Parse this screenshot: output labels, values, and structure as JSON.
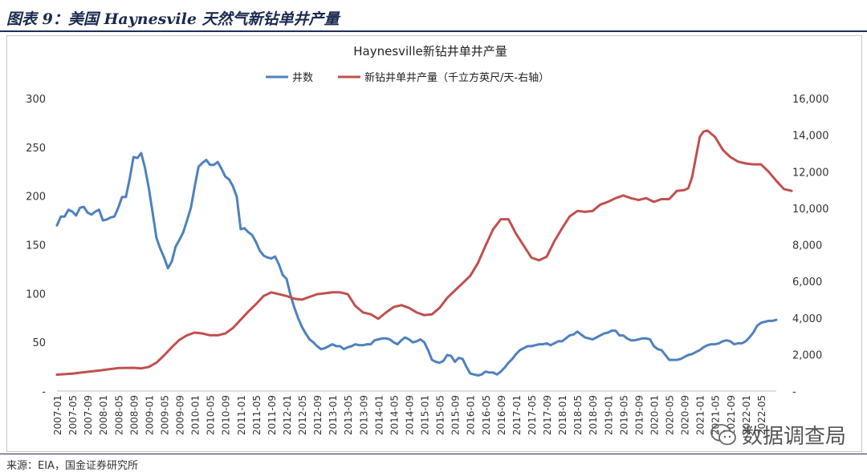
{
  "figure": {
    "title": "图表 9：美国 Haynesvile 天然气新钻单井产量",
    "source": "来源：EIA，国金证券研究所",
    "watermark": "数据调查局"
  },
  "chart_data": {
    "type": "line",
    "title": "Haynesville新钻井单井产量",
    "legend_position": "top",
    "grid": false,
    "x_ticks": [
      "2007-01",
      "2007-05",
      "2007-09",
      "2008-01",
      "2008-05",
      "2008-09",
      "2009-01",
      "2009-05",
      "2009-09",
      "2010-01",
      "2010-05",
      "2010-09",
      "2011-01",
      "2011-05",
      "2011-09",
      "2012-01",
      "2012-05",
      "2012-09",
      "2013-01",
      "2013-05",
      "2013-09",
      "2014-01",
      "2014-05",
      "2014-09",
      "2015-01",
      "2015-05",
      "2015-09",
      "2016-01",
      "2016-05",
      "2016-09",
      "2017-01",
      "2017-05",
      "2017-09",
      "2018-01",
      "2018-05",
      "2018-09",
      "2019-01",
      "2019-05",
      "2019-09",
      "2020-01",
      "2020-05",
      "2020-09",
      "2021-01",
      "2021-05",
      "2021-09",
      "2022-01",
      "2022-05"
    ],
    "y_left": {
      "min": 0,
      "max": 300,
      "ticks": [
        "-",
        "50",
        "100",
        "150",
        "200",
        "250",
        "300"
      ]
    },
    "y_right": {
      "min": 0,
      "max": 16000,
      "ticks": [
        "-",
        "2,000",
        "4,000",
        "6,000",
        "8,000",
        "10,000",
        "12,000",
        "14,000",
        "16,000"
      ]
    },
    "series": [
      {
        "name": "井数",
        "axis": "left",
        "color": "#4f81bd",
        "points": [
          [
            "2007-01",
            170
          ],
          [
            "2007-02",
            179
          ],
          [
            "2007-03",
            179
          ],
          [
            "2007-04",
            186
          ],
          [
            "2007-05",
            184
          ],
          [
            "2007-06",
            180
          ],
          [
            "2007-07",
            188
          ],
          [
            "2007-08",
            189
          ],
          [
            "2007-09",
            183
          ],
          [
            "2007-10",
            181
          ],
          [
            "2007-11",
            184
          ],
          [
            "2007-12",
            186
          ],
          [
            "2008-01",
            175
          ],
          [
            "2008-02",
            176
          ],
          [
            "2008-03",
            178
          ],
          [
            "2008-04",
            179
          ],
          [
            "2008-05",
            188
          ],
          [
            "2008-06",
            199
          ],
          [
            "2008-07",
            199
          ],
          [
            "2008-08",
            218
          ],
          [
            "2008-09",
            240
          ],
          [
            "2008-10",
            239
          ],
          [
            "2008-11",
            244
          ],
          [
            "2008-12",
            229
          ],
          [
            "2009-01",
            208
          ],
          [
            "2009-02",
            183
          ],
          [
            "2009-03",
            157
          ],
          [
            "2009-04",
            146
          ],
          [
            "2009-05",
            137
          ],
          [
            "2009-06",
            126
          ],
          [
            "2009-07",
            133
          ],
          [
            "2009-08",
            148
          ],
          [
            "2009-09",
            155
          ],
          [
            "2009-10",
            163
          ],
          [
            "2009-11",
            175
          ],
          [
            "2009-12",
            188
          ],
          [
            "2010-01",
            210
          ],
          [
            "2010-02",
            230
          ],
          [
            "2010-03",
            234
          ],
          [
            "2010-04",
            237
          ],
          [
            "2010-05",
            232
          ],
          [
            "2010-06",
            232
          ],
          [
            "2010-07",
            235
          ],
          [
            "2010-08",
            228
          ],
          [
            "2010-09",
            220
          ],
          [
            "2010-10",
            217
          ],
          [
            "2010-11",
            210
          ],
          [
            "2010-12",
            199
          ],
          [
            "2011-01",
            166
          ],
          [
            "2011-02",
            167
          ],
          [
            "2011-03",
            163
          ],
          [
            "2011-04",
            160
          ],
          [
            "2011-05",
            153
          ],
          [
            "2011-06",
            144
          ],
          [
            "2011-07",
            139
          ],
          [
            "2011-08",
            137
          ],
          [
            "2011-09",
            136
          ],
          [
            "2011-10",
            138
          ],
          [
            "2011-11",
            130
          ],
          [
            "2011-12",
            119
          ],
          [
            "2012-01",
            115
          ],
          [
            "2012-02",
            99
          ],
          [
            "2012-03",
            86
          ],
          [
            "2012-04",
            75
          ],
          [
            "2012-05",
            66
          ],
          [
            "2012-06",
            59
          ],
          [
            "2012-07",
            53
          ],
          [
            "2012-08",
            50
          ],
          [
            "2012-09",
            46
          ],
          [
            "2012-10",
            43
          ],
          [
            "2012-11",
            44
          ],
          [
            "2012-12",
            46
          ],
          [
            "2013-01",
            48
          ],
          [
            "2013-02",
            46
          ],
          [
            "2013-03",
            46
          ],
          [
            "2013-04",
            43
          ],
          [
            "2013-05",
            45
          ],
          [
            "2013-06",
            46
          ],
          [
            "2013-07",
            48
          ],
          [
            "2013-08",
            47
          ],
          [
            "2013-09",
            47
          ],
          [
            "2013-10",
            48
          ],
          [
            "2013-11",
            48
          ],
          [
            "2013-12",
            52
          ],
          [
            "2014-01",
            53
          ],
          [
            "2014-02",
            54
          ],
          [
            "2014-03",
            54
          ],
          [
            "2014-04",
            53
          ],
          [
            "2014-05",
            50
          ],
          [
            "2014-06",
            48
          ],
          [
            "2014-07",
            52
          ],
          [
            "2014-08",
            55
          ],
          [
            "2014-09",
            53
          ],
          [
            "2014-10",
            50
          ],
          [
            "2014-11",
            51
          ],
          [
            "2014-12",
            53
          ],
          [
            "2015-01",
            50
          ],
          [
            "2015-02",
            42
          ],
          [
            "2015-03",
            32
          ],
          [
            "2015-04",
            30
          ],
          [
            "2015-05",
            29
          ],
          [
            "2015-06",
            31
          ],
          [
            "2015-07",
            37
          ],
          [
            "2015-08",
            36
          ],
          [
            "2015-09",
            30
          ],
          [
            "2015-10",
            34
          ],
          [
            "2015-11",
            33
          ],
          [
            "2015-12",
            25
          ],
          [
            "2016-01",
            18
          ],
          [
            "2016-02",
            17
          ],
          [
            "2016-03",
            16
          ],
          [
            "2016-04",
            17
          ],
          [
            "2016-05",
            20
          ],
          [
            "2016-06",
            19
          ],
          [
            "2016-07",
            19
          ],
          [
            "2016-08",
            17
          ],
          [
            "2016-09",
            20
          ],
          [
            "2016-10",
            24
          ],
          [
            "2016-11",
            29
          ],
          [
            "2016-12",
            33
          ],
          [
            "2017-01",
            38
          ],
          [
            "2017-02",
            42
          ],
          [
            "2017-03",
            44
          ],
          [
            "2017-04",
            46
          ],
          [
            "2017-05",
            46
          ],
          [
            "2017-06",
            47
          ],
          [
            "2017-07",
            48
          ],
          [
            "2017-08",
            48
          ],
          [
            "2017-09",
            49
          ],
          [
            "2017-10",
            47
          ],
          [
            "2017-11",
            49
          ],
          [
            "2017-12",
            51
          ],
          [
            "2018-01",
            51
          ],
          [
            "2018-02",
            54
          ],
          [
            "2018-03",
            57
          ],
          [
            "2018-04",
            58
          ],
          [
            "2018-05",
            61
          ],
          [
            "2018-06",
            58
          ],
          [
            "2018-07",
            55
          ],
          [
            "2018-08",
            54
          ],
          [
            "2018-09",
            53
          ],
          [
            "2018-10",
            55
          ],
          [
            "2018-11",
            57
          ],
          [
            "2018-12",
            59
          ],
          [
            "2019-01",
            60
          ],
          [
            "2019-02",
            62
          ],
          [
            "2019-03",
            62
          ],
          [
            "2019-04",
            57
          ],
          [
            "2019-05",
            57
          ],
          [
            "2019-06",
            54
          ],
          [
            "2019-07",
            52
          ],
          [
            "2019-08",
            52
          ],
          [
            "2019-09",
            53
          ],
          [
            "2019-10",
            54
          ],
          [
            "2019-11",
            54
          ],
          [
            "2019-12",
            53
          ],
          [
            "2020-01",
            46
          ],
          [
            "2020-02",
            43
          ],
          [
            "2020-03",
            42
          ],
          [
            "2020-04",
            37
          ],
          [
            "2020-05",
            32
          ],
          [
            "2020-06",
            32
          ],
          [
            "2020-07",
            32
          ],
          [
            "2020-08",
            33
          ],
          [
            "2020-09",
            35
          ],
          [
            "2020-10",
            37
          ],
          [
            "2020-11",
            38
          ],
          [
            "2020-12",
            40
          ],
          [
            "2021-01",
            42
          ],
          [
            "2021-02",
            45
          ],
          [
            "2021-03",
            47
          ],
          [
            "2021-04",
            48
          ],
          [
            "2021-05",
            48
          ],
          [
            "2021-06",
            49
          ],
          [
            "2021-07",
            51
          ],
          [
            "2021-08",
            52
          ],
          [
            "2021-09",
            51
          ],
          [
            "2021-10",
            48
          ],
          [
            "2021-11",
            49
          ],
          [
            "2021-12",
            49
          ],
          [
            "2022-01",
            51
          ],
          [
            "2022-02",
            55
          ],
          [
            "2022-03",
            60
          ],
          [
            "2022-04",
            67
          ],
          [
            "2022-05",
            70
          ],
          [
            "2022-06",
            71
          ],
          [
            "2022-07",
            72
          ],
          [
            "2022-08",
            72
          ],
          [
            "2022-09",
            73
          ]
        ]
      },
      {
        "name": "新钻井单井产量（千立方英尺/天-右轴）",
        "axis": "right",
        "color": "#c0504d",
        "points": [
          [
            "2007-01",
            900
          ],
          [
            "2007-05",
            950
          ],
          [
            "2007-09",
            1050
          ],
          [
            "2008-01",
            1150
          ],
          [
            "2008-05",
            1260
          ],
          [
            "2008-09",
            1270
          ],
          [
            "2008-11",
            1240
          ],
          [
            "2009-01",
            1320
          ],
          [
            "2009-03",
            1550
          ],
          [
            "2009-05",
            1950
          ],
          [
            "2009-07",
            2400
          ],
          [
            "2009-09",
            2800
          ],
          [
            "2009-11",
            3050
          ],
          [
            "2010-01",
            3200
          ],
          [
            "2010-03",
            3150
          ],
          [
            "2010-05",
            3050
          ],
          [
            "2010-07",
            3050
          ],
          [
            "2010-09",
            3150
          ],
          [
            "2010-11",
            3450
          ],
          [
            "2011-01",
            3900
          ],
          [
            "2011-03",
            4350
          ],
          [
            "2011-05",
            4750
          ],
          [
            "2011-07",
            5200
          ],
          [
            "2011-09",
            5400
          ],
          [
            "2011-11",
            5300
          ],
          [
            "2012-01",
            5200
          ],
          [
            "2012-03",
            5050
          ],
          [
            "2012-05",
            5000
          ],
          [
            "2012-07",
            5150
          ],
          [
            "2012-09",
            5300
          ],
          [
            "2012-11",
            5350
          ],
          [
            "2013-01",
            5400
          ],
          [
            "2013-03",
            5400
          ],
          [
            "2013-05",
            5300
          ],
          [
            "2013-07",
            4650
          ],
          [
            "2013-09",
            4300
          ],
          [
            "2013-11",
            4200
          ],
          [
            "2014-01",
            3950
          ],
          [
            "2014-03",
            4300
          ],
          [
            "2014-05",
            4600
          ],
          [
            "2014-07",
            4700
          ],
          [
            "2014-09",
            4550
          ],
          [
            "2014-11",
            4300
          ],
          [
            "2015-01",
            4150
          ],
          [
            "2015-03",
            4200
          ],
          [
            "2015-05",
            4550
          ],
          [
            "2015-07",
            5100
          ],
          [
            "2015-09",
            5500
          ],
          [
            "2015-11",
            5900
          ],
          [
            "2016-01",
            6300
          ],
          [
            "2016-03",
            7000
          ],
          [
            "2016-05",
            7950
          ],
          [
            "2016-07",
            8850
          ],
          [
            "2016-09",
            9400
          ],
          [
            "2016-11",
            9400
          ],
          [
            "2017-01",
            8600
          ],
          [
            "2017-03",
            7950
          ],
          [
            "2017-05",
            7300
          ],
          [
            "2017-07",
            7150
          ],
          [
            "2017-09",
            7350
          ],
          [
            "2017-11",
            8200
          ],
          [
            "2018-01",
            8900
          ],
          [
            "2018-03",
            9550
          ],
          [
            "2018-05",
            9850
          ],
          [
            "2018-07",
            9800
          ],
          [
            "2018-09",
            9850
          ],
          [
            "2018-11",
            10200
          ],
          [
            "2019-01",
            10350
          ],
          [
            "2019-03",
            10550
          ],
          [
            "2019-05",
            10700
          ],
          [
            "2019-07",
            10550
          ],
          [
            "2019-09",
            10450
          ],
          [
            "2019-11",
            10550
          ],
          [
            "2020-01",
            10350
          ],
          [
            "2020-03",
            10500
          ],
          [
            "2020-05",
            10500
          ],
          [
            "2020-07",
            10950
          ],
          [
            "2020-09",
            11000
          ],
          [
            "2020-10",
            11100
          ],
          [
            "2020-11",
            11700
          ],
          [
            "2021-01",
            13900
          ],
          [
            "2021-02",
            14200
          ],
          [
            "2021-03",
            14250
          ],
          [
            "2021-05",
            13900
          ],
          [
            "2021-07",
            13200
          ],
          [
            "2021-09",
            12800
          ],
          [
            "2021-11",
            12550
          ],
          [
            "2022-01",
            12450
          ],
          [
            "2022-03",
            12400
          ],
          [
            "2022-05",
            12400
          ],
          [
            "2022-07",
            12000
          ],
          [
            "2022-09",
            11500
          ],
          [
            "2022-11",
            11050
          ],
          [
            "2023-01",
            10950
          ]
        ]
      }
    ]
  }
}
